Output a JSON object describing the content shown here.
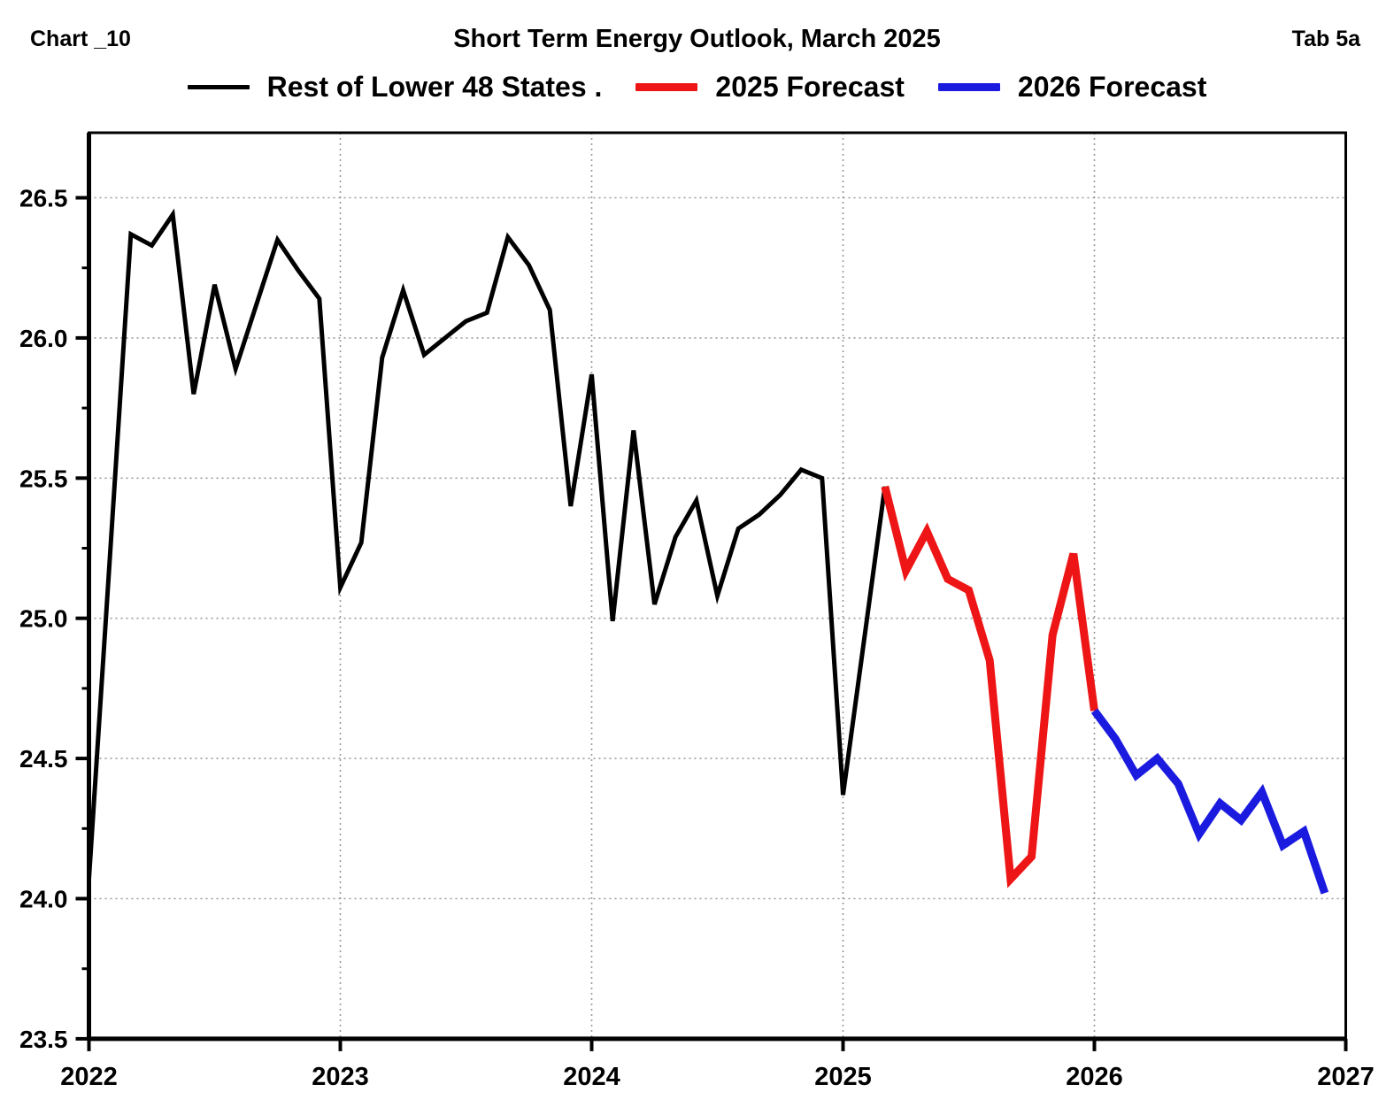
{
  "header": {
    "chart_label": "Chart _10",
    "title": "Short Term Energy Outlook, March 2025",
    "tab_label": "Tab 5a"
  },
  "legend": [
    {
      "label": "Rest of Lower 48 States .",
      "color": "#000000",
      "thickness": 5
    },
    {
      "label": "2025 Forecast",
      "color": "#ed1515",
      "thickness": 9
    },
    {
      "label": "2026 Forecast",
      "color": "#1b1be0",
      "thickness": 9
    }
  ],
  "chart_data": {
    "type": "line",
    "title": "Short Term Energy Outlook, March 2025",
    "x_unit": "month",
    "x_range": [
      "2022-01",
      "2027-01"
    ],
    "x_tick_labels": [
      "2022",
      "2023",
      "2024",
      "2025",
      "2026",
      "2027"
    ],
    "y_tick_labels": [
      "23.5",
      "24.0",
      "24.5",
      "25.0",
      "25.5",
      "26.0",
      "26.5"
    ],
    "y_major_ticks": [
      23.5,
      24.0,
      24.5,
      25.0,
      25.5,
      26.0,
      26.5
    ],
    "y_minor_ticks": [
      23.75,
      24.25,
      24.75,
      25.25,
      25.75,
      26.25
    ],
    "ylim": [
      23.5,
      26.73
    ],
    "grid": "dotted",
    "legend_position": "top",
    "series": [
      {
        "name": "Rest of Lower 48 States .",
        "color": "#000000",
        "width": 5,
        "start_month": "2022-01",
        "values": [
          24.07,
          25.22,
          26.37,
          26.33,
          26.44,
          25.8,
          26.19,
          25.89,
          26.12,
          26.35,
          26.24,
          26.14,
          25.11,
          25.27,
          25.93,
          26.17,
          25.94,
          26.0,
          26.06,
          26.09,
          26.36,
          26.26,
          26.1,
          25.4,
          25.87,
          24.99,
          25.67,
          25.05,
          25.29,
          25.42,
          25.08,
          25.32,
          25.37,
          25.44,
          25.53,
          25.5,
          24.37,
          24.92,
          25.47
        ]
      },
      {
        "name": "2025 Forecast",
        "color": "#ed1515",
        "width": 9,
        "start_month": "2025-03",
        "values": [
          25.47,
          25.17,
          25.31,
          25.14,
          25.1,
          24.85,
          24.07,
          24.15,
          24.94,
          25.23,
          24.67
        ]
      },
      {
        "name": "2026 Forecast",
        "color": "#1b1be0",
        "width": 9,
        "start_month": "2026-01",
        "values": [
          24.67,
          24.57,
          24.44,
          24.5,
          24.41,
          24.23,
          24.34,
          24.28,
          24.38,
          24.19,
          24.24,
          24.02
        ]
      }
    ]
  }
}
